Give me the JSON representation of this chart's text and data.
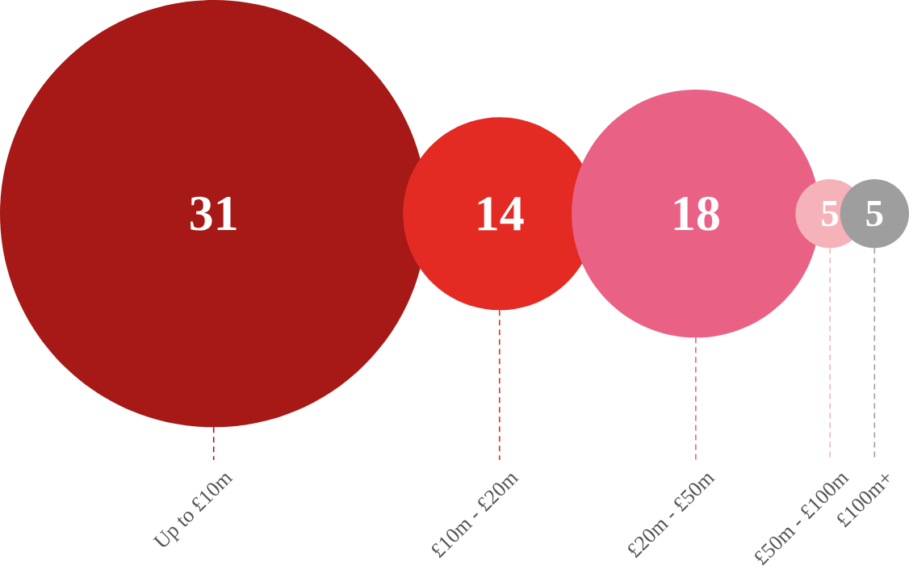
{
  "chart_data": {
    "type": "other",
    "categories": [
      "Up to £10m",
      "£10m - £20m",
      "£20m - £50m",
      "£50m - £100m",
      "£100m+"
    ],
    "values": [
      31,
      14,
      18,
      5,
      5
    ],
    "value_labels": [
      "31",
      "14",
      "18",
      "5",
      "5"
    ],
    "colors": [
      "#a61916",
      "#e32b24",
      "#ea6186",
      "#f5b3b9",
      "#9e9e9e"
    ]
  }
}
